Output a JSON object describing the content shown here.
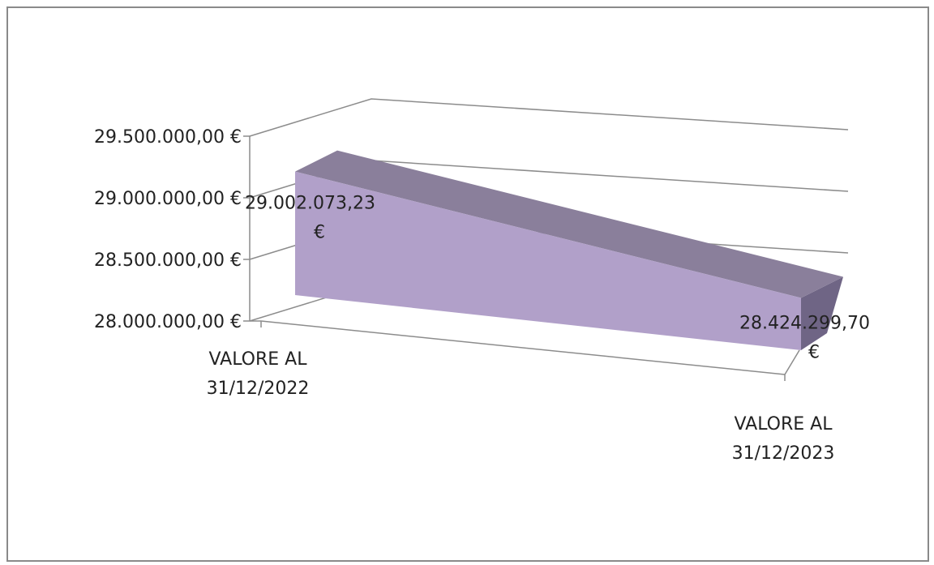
{
  "chart_data": {
    "type": "area",
    "style": "3d-area",
    "categories": [
      "VALORE AL 31/12/2022",
      "VALORE AL 31/12/2023"
    ],
    "category_lines": [
      [
        "VALORE AL",
        "31/12/2022"
      ],
      [
        "VALORE AL",
        "31/12/2023"
      ]
    ],
    "series": [
      {
        "values": [
          29002073.23,
          28424299.7
        ]
      }
    ],
    "data_labels": [
      [
        "29.002.073,23",
        "€"
      ],
      [
        "28.424.299,70",
        "€"
      ]
    ],
    "y_ticks": [
      28000000,
      28500000,
      29000000,
      29500000
    ],
    "y_tick_labels": [
      "28.000.000,00 €",
      "28.500.000,00 €",
      "29.000.000,00 €",
      "29.500.000,00 €"
    ],
    "ylim": [
      28000000,
      29500000
    ],
    "grid": true,
    "legend": "none",
    "colors": {
      "front": "#b1a0c9",
      "top": "#8a7f9b",
      "side": "#6f6585",
      "grid": "#8c8c8c",
      "frame": "#8a8a8a"
    }
  }
}
